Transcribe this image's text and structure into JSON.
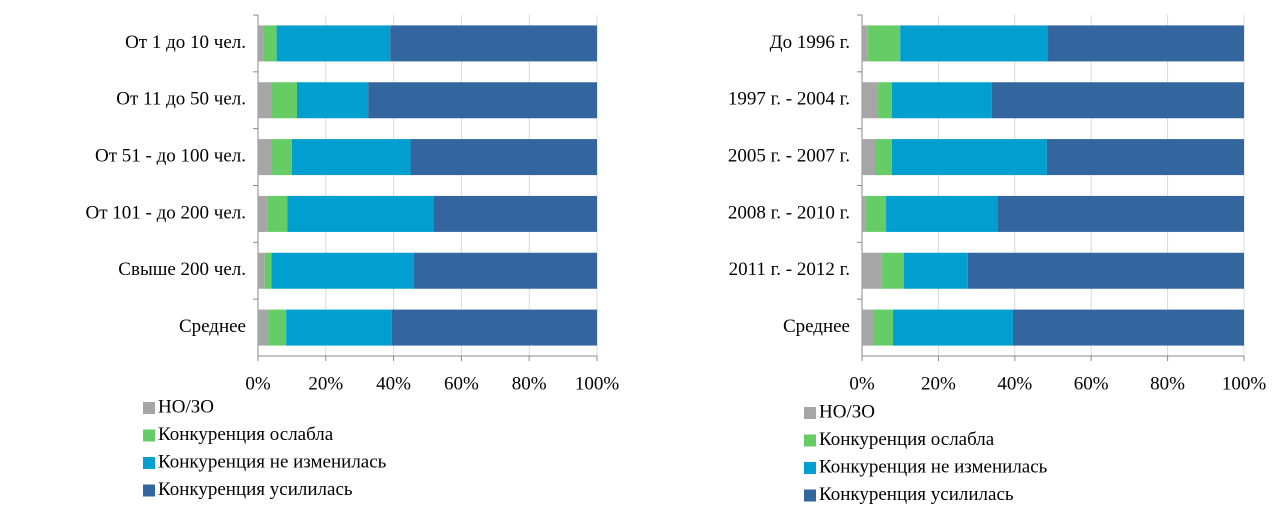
{
  "chart_data": [
    {
      "type": "stacked_bar_horizontal",
      "categories": [
        "От 1 до 10 чел.",
        "От 11 до 50 чел.",
        "От 51 - до 100 чел.",
        "От 101 - до 200 чел.",
        "Свыше 200 чел.",
        "Среднее"
      ],
      "series": [
        {
          "name": "НО/ЗО",
          "color": "#a6a6a6",
          "values": [
            1.5,
            4,
            4,
            2.7,
            2,
            3
          ]
        },
        {
          "name": "Конкуренция ослабла",
          "color": "#66cc66",
          "values": [
            4,
            7.5,
            6,
            6,
            2,
            5.3
          ]
        },
        {
          "name": "Конкуренция не изменилась",
          "color": "#009fcf",
          "values": [
            33.5,
            21,
            35,
            43,
            42,
            31.2
          ]
        },
        {
          "name": "Конкуренция усилилась",
          "color": "#33669e",
          "values": [
            61,
            67.5,
            55,
            48.3,
            54,
            60.5
          ]
        }
      ],
      "xlim": [
        0,
        100
      ],
      "xticks": [
        {
          "value": 0,
          "label": "0%"
        },
        {
          "value": 20,
          "label": "20%"
        },
        {
          "value": 40,
          "label": "40%"
        },
        {
          "value": 60,
          "label": "60%"
        },
        {
          "value": 80,
          "label": "80%"
        },
        {
          "value": 100,
          "label": "100%"
        }
      ],
      "grid": true,
      "legend": "bottom"
    },
    {
      "type": "stacked_bar_horizontal",
      "categories": [
        "До 1996 г.",
        "1997 г. - 2004 г.",
        "2005 г. - 2007 г.",
        "2008 г. - 2010 г.",
        "2011 г. - 2012 г.",
        "Среднее"
      ],
      "series": [
        {
          "name": "НО/ЗО",
          "color": "#a6a6a6",
          "values": [
            1.5,
            4.2,
            3.4,
            1,
            5.2,
            3
          ]
        },
        {
          "name": "Конкуренция ослабла",
          "color": "#66cc66",
          "values": [
            8.5,
            3.6,
            4.4,
            5.3,
            5.8,
            5.1
          ]
        },
        {
          "name": "Конкуренция не изменилась",
          "color": "#009fcf",
          "values": [
            38.7,
            26.2,
            40.6,
            29.3,
            16.7,
            31.4
          ]
        },
        {
          "name": "Конкуренция усилилась",
          "color": "#33669e",
          "values": [
            51.3,
            66,
            51.6,
            64.4,
            72.3,
            60.5
          ]
        }
      ],
      "xlim": [
        0,
        100
      ],
      "xticks": [
        {
          "value": 0,
          "label": "0%"
        },
        {
          "value": 20,
          "label": "20%"
        },
        {
          "value": 40,
          "label": "40%"
        },
        {
          "value": 60,
          "label": "60%"
        },
        {
          "value": 80,
          "label": "80%"
        },
        {
          "value": 100,
          "label": "100%"
        }
      ],
      "grid": true,
      "legend": "bottom"
    }
  ]
}
